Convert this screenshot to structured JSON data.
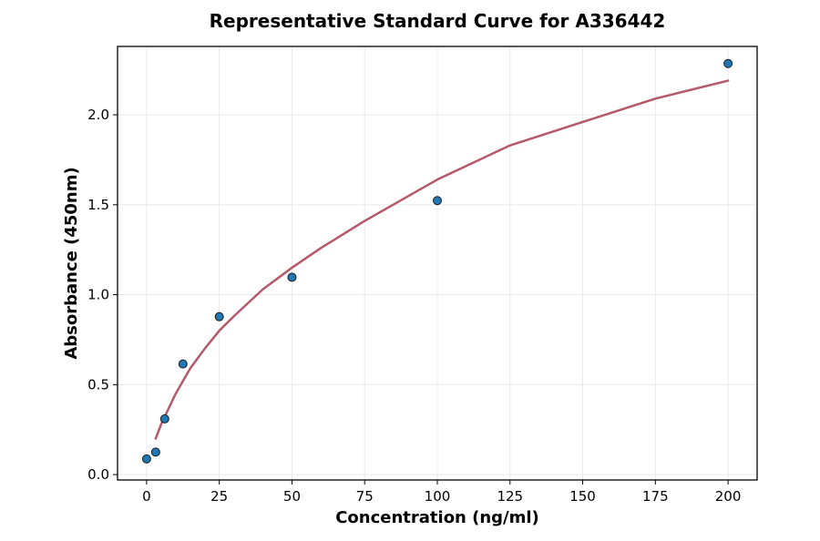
{
  "chart_data": {
    "type": "scatter",
    "title": "Representative Standard Curve for A336442",
    "xlabel": "Concentration (ng/ml)",
    "ylabel": "Absorbance (450nm)",
    "xlim": [
      -10,
      210
    ],
    "ylim": [
      -0.03,
      2.38
    ],
    "xticks": [
      0,
      25,
      50,
      75,
      100,
      125,
      150,
      175,
      200
    ],
    "xtick_labels": [
      "0",
      "25",
      "50",
      "75",
      "100",
      "125",
      "150",
      "175",
      "200"
    ],
    "yticks": [
      0.0,
      0.5,
      1.0,
      1.5,
      2.0
    ],
    "ytick_labels": [
      "0.0",
      "0.5",
      "1.0",
      "1.5",
      "2.0"
    ],
    "grid": true,
    "points": {
      "x": [
        0,
        3.125,
        6.25,
        12.5,
        25,
        50,
        100,
        200
      ],
      "y": [
        0.087,
        0.125,
        0.31,
        0.615,
        0.878,
        1.097,
        1.523,
        2.285
      ],
      "color": "#1f77b4",
      "edge_color": "#1a1a1a"
    },
    "fit_curve": {
      "x": [
        3.125,
        5,
        10,
        15,
        20,
        25,
        30,
        40,
        50,
        60,
        75,
        100,
        125,
        150,
        175,
        200
      ],
      "y": [
        0.2,
        0.28,
        0.45,
        0.59,
        0.7,
        0.8,
        0.88,
        1.03,
        1.15,
        1.26,
        1.41,
        1.64,
        1.83,
        1.96,
        2.09,
        2.19
      ],
      "color": "#b5596a"
    }
  }
}
